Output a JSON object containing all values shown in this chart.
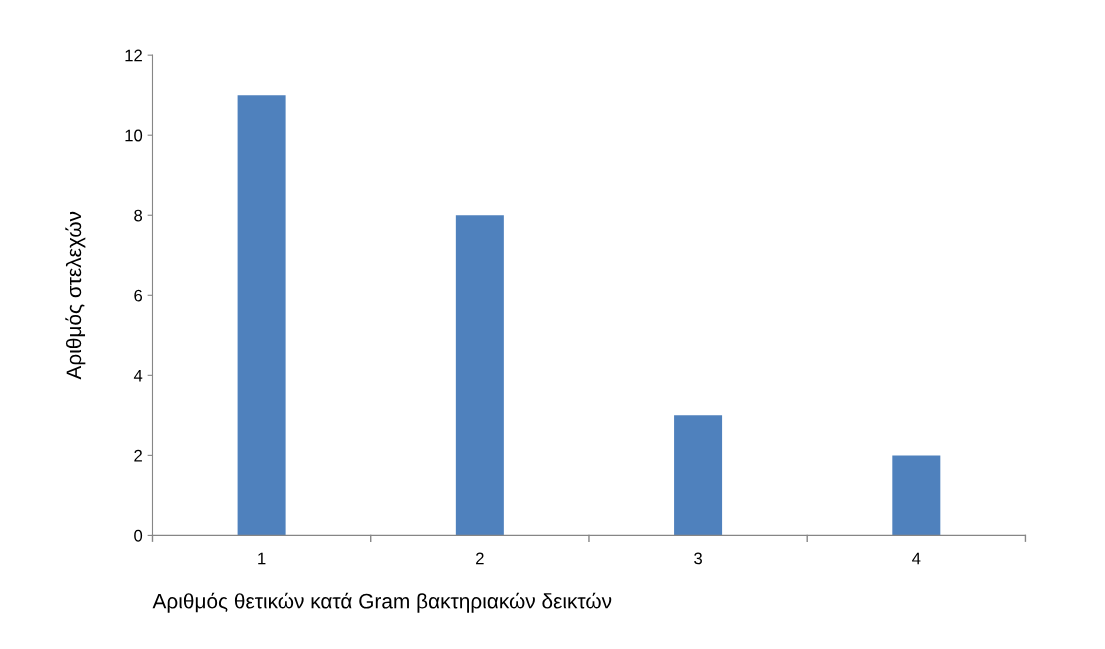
{
  "chart_data": {
    "type": "bar",
    "xlabel": "Αριθμός θετικών κατά Gram βακτηριακών δεικτών",
    "ylabel": "Αριθμός στελεχών",
    "categories": [
      "1",
      "2",
      "3",
      "4"
    ],
    "values": [
      11,
      8,
      3,
      2
    ],
    "color": "#4f81bd",
    "ylim": [
      0,
      12
    ],
    "yticks": [
      0,
      2,
      4,
      6,
      8,
      10,
      12
    ],
    "grid": false,
    "legend": false
  }
}
